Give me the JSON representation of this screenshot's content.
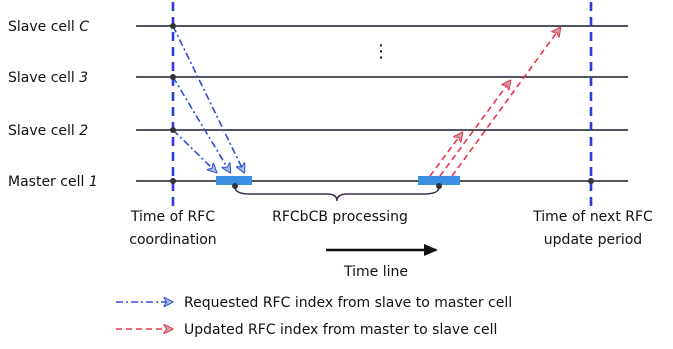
{
  "cells": [
    {
      "label": "Slave cell ",
      "index": "C"
    },
    {
      "label": "Slave cell ",
      "index": "3"
    },
    {
      "label": "Slave cell ",
      "index": "2"
    },
    {
      "label": "Master cell ",
      "index": "1"
    }
  ],
  "ellipsis": "⋮",
  "annotations": {
    "rfc_coordination": [
      "Time of RFC",
      "coordination"
    ],
    "processing": "RFCbCB processing",
    "next_update": [
      "Time of next RFC",
      "update period"
    ],
    "timeline": "Time line"
  },
  "legend": [
    {
      "text": "Requested RFC index from slave to master cell",
      "color": "#2a4fd6",
      "style": "dash-dot"
    },
    {
      "text": "Updated RFC index from master to slave cell",
      "color": "#e8334a",
      "style": "dashed"
    }
  ],
  "colors": {
    "cell_line": "#1a1a2e",
    "period_marker": "#2a3fd6",
    "processing_block": "#3a8fe0",
    "request_arrow": "#2a4fd6",
    "request_head_fill": "#a8bcd8",
    "update_arrow": "#e8334a",
    "update_head_fill": "#c9a4a8"
  }
}
